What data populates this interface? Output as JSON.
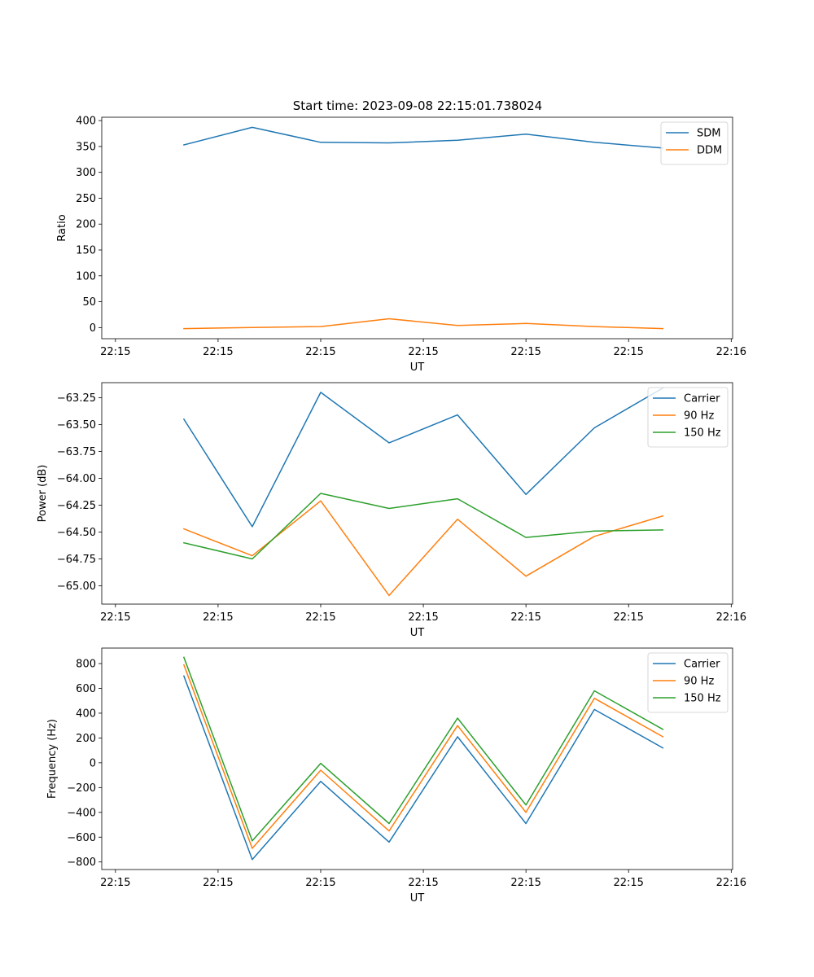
{
  "figure_title": "Start time: 2023-09-08 22:15:01.738024",
  "colors": {
    "blue": "#1f77b4",
    "orange": "#ff7f0e",
    "green": "#2ca02c"
  },
  "chart_data": [
    {
      "type": "line",
      "title": "Start time: 2023-09-08 22:15:01.738024",
      "xlabel": "UT",
      "ylabel": "Ratio",
      "x": [
        1,
        2,
        3,
        4,
        5,
        6,
        7,
        8
      ],
      "x_ticks": [
        0,
        1.5,
        3,
        4.5,
        6,
        7.5,
        9
      ],
      "x_tick_labels": [
        "22:15",
        "22:15",
        "22:15",
        "22:15",
        "22:15",
        "22:15",
        "22:16"
      ],
      "xlim": [
        -0.2,
        9.02
      ],
      "y_ticks": [
        0,
        50,
        100,
        150,
        200,
        250,
        300,
        350,
        400
      ],
      "y_tick_labels": [
        "0",
        "50",
        "100",
        "150",
        "200",
        "250",
        "300",
        "350",
        "400"
      ],
      "ylim": [
        -21.5,
        406.5
      ],
      "legend_position": "top-right",
      "series": [
        {
          "name": "SDM",
          "color": "#1f77b4",
          "values": [
            353,
            387,
            358,
            357,
            362,
            374,
            358,
            347
          ]
        },
        {
          "name": "DDM",
          "color": "#ff7f0e",
          "values": [
            -2,
            0,
            2,
            17,
            4,
            8,
            2,
            -2
          ]
        }
      ]
    },
    {
      "type": "line",
      "title": "",
      "xlabel": "UT",
      "ylabel": "Power (dB)",
      "x": [
        1,
        2,
        3,
        4,
        5,
        6,
        7,
        8
      ],
      "x_ticks": [
        0,
        1.5,
        3,
        4.5,
        6,
        7.5,
        9
      ],
      "x_tick_labels": [
        "22:15",
        "22:15",
        "22:15",
        "22:15",
        "22:15",
        "22:15",
        "22:16"
      ],
      "xlim": [
        -0.2,
        9.02
      ],
      "y_ticks": [
        -65.0,
        -64.75,
        -64.5,
        -64.25,
        -64.0,
        -63.75,
        -63.5,
        -63.25
      ],
      "y_tick_labels": [
        "−65.00",
        "−64.75",
        "−64.50",
        "−64.25",
        "−64.00",
        "−63.75",
        "−63.50",
        "−63.25"
      ],
      "ylim": [
        -65.17,
        -63.11
      ],
      "legend_position": "top-right",
      "series": [
        {
          "name": "Carrier",
          "color": "#1f77b4",
          "values": [
            -63.45,
            -64.45,
            -63.2,
            -63.67,
            -63.41,
            -64.15,
            -63.53,
            -63.16
          ]
        },
        {
          "name": "90 Hz",
          "color": "#ff7f0e",
          "values": [
            -64.47,
            -64.72,
            -64.21,
            -65.09,
            -64.38,
            -64.91,
            -64.54,
            -64.35
          ]
        },
        {
          "name": "150 Hz",
          "color": "#2ca02c",
          "values": [
            -64.6,
            -64.75,
            -64.14,
            -64.28,
            -64.19,
            -64.55,
            -64.49,
            -64.48
          ]
        }
      ]
    },
    {
      "type": "line",
      "title": "",
      "xlabel": "UT",
      "ylabel": "Frequency (Hz)",
      "x": [
        1,
        2,
        3,
        4,
        5,
        6,
        7,
        8
      ],
      "x_ticks": [
        0,
        1.5,
        3,
        4.5,
        6,
        7.5,
        9
      ],
      "x_tick_labels": [
        "22:15",
        "22:15",
        "22:15",
        "22:15",
        "22:15",
        "22:15",
        "22:16"
      ],
      "xlim": [
        -0.2,
        9.02
      ],
      "y_ticks": [
        -800,
        -600,
        -400,
        -200,
        0,
        200,
        400,
        600,
        800
      ],
      "y_tick_labels": [
        "−800",
        "−600",
        "−400",
        "−200",
        "0",
        "200",
        "400",
        "600",
        "800"
      ],
      "ylim": [
        -861,
        925
      ],
      "legend_position": "top-right",
      "series": [
        {
          "name": "Carrier",
          "color": "#1f77b4",
          "values": [
            700,
            -780,
            -150,
            -640,
            210,
            -490,
            430,
            120
          ]
        },
        {
          "name": "90 Hz",
          "color": "#ff7f0e",
          "values": [
            790,
            -690,
            -60,
            -550,
            300,
            -400,
            520,
            210
          ]
        },
        {
          "name": "150 Hz",
          "color": "#2ca02c",
          "values": [
            850,
            -630,
            -5,
            -490,
            360,
            -340,
            580,
            270
          ]
        }
      ]
    }
  ]
}
